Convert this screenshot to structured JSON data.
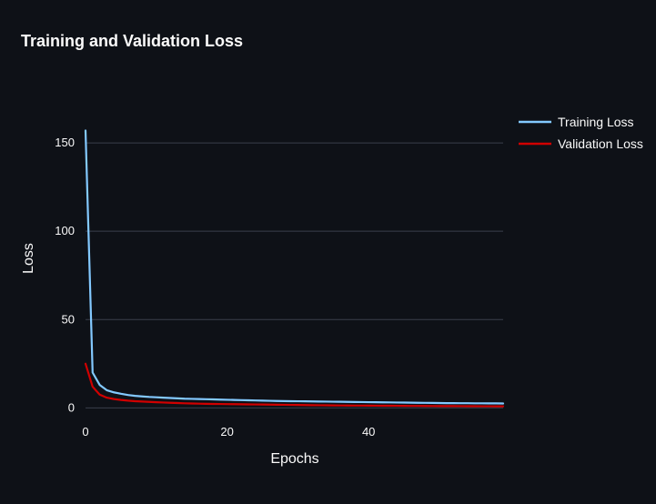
{
  "colors": {
    "background": "#0e1117",
    "grid": "#3a3f4b",
    "text": "#fafafa",
    "training": "#83c9ff",
    "validation": "#d00000"
  },
  "chart_data": {
    "type": "line",
    "title": "Training and Validation Loss",
    "xlabel": "Epochs",
    "ylabel": "Loss",
    "xlim": [
      0,
      59
    ],
    "ylim": [
      -6,
      166
    ],
    "xticks": [
      0,
      20,
      40
    ],
    "yticks": [
      0,
      50,
      100,
      150
    ],
    "grid": "horizontal",
    "legend_position": "top-right",
    "x": [
      0,
      1,
      2,
      3,
      4,
      5,
      6,
      7,
      8,
      9,
      10,
      11,
      12,
      13,
      14,
      15,
      16,
      17,
      18,
      19,
      20,
      21,
      22,
      23,
      24,
      25,
      26,
      27,
      28,
      29,
      30,
      31,
      32,
      33,
      34,
      35,
      36,
      37,
      38,
      39,
      40,
      41,
      42,
      43,
      44,
      45,
      46,
      47,
      48,
      49,
      50,
      51,
      52,
      53,
      54,
      55,
      56,
      57,
      58,
      59
    ],
    "series": [
      {
        "name": "Training Loss",
        "color": "#83c9ff",
        "values": [
          157,
          20,
          13,
          10,
          8.8,
          8,
          7.3,
          6.8,
          6.5,
          6.2,
          6,
          5.8,
          5.6,
          5.4,
          5.2,
          5.1,
          5,
          4.9,
          4.8,
          4.7,
          4.6,
          4.5,
          4.4,
          4.3,
          4.2,
          4.1,
          4,
          3.9,
          3.85,
          3.8,
          3.75,
          3.7,
          3.65,
          3.6,
          3.55,
          3.5,
          3.45,
          3.4,
          3.35,
          3.3,
          3.25,
          3.2,
          3.15,
          3.1,
          3.05,
          3,
          2.95,
          2.9,
          2.85,
          2.8,
          2.75,
          2.7,
          2.7,
          2.65,
          2.65,
          2.6,
          2.6,
          2.55,
          2.55,
          2.5
        ]
      },
      {
        "name": "Validation Loss",
        "color": "#d00000",
        "values": [
          25,
          12,
          7.5,
          5.8,
          5,
          4.5,
          4.1,
          3.8,
          3.6,
          3.4,
          3.2,
          3.05,
          2.9,
          2.75,
          2.6,
          2.5,
          2.4,
          2.3,
          2.25,
          2.2,
          2.15,
          2.1,
          2.05,
          2,
          1.95,
          1.9,
          1.85,
          1.8,
          1.75,
          1.7,
          1.65,
          1.6,
          1.55,
          1.5,
          1.45,
          1.4,
          1.38,
          1.35,
          1.32,
          1.3,
          1.27,
          1.25,
          1.22,
          1.2,
          1.17,
          1.15,
          1.12,
          1.1,
          1.07,
          1.05,
          1.02,
          1,
          1,
          0.98,
          0.96,
          0.95,
          0.93,
          0.92,
          0.9,
          0.9
        ]
      }
    ]
  }
}
